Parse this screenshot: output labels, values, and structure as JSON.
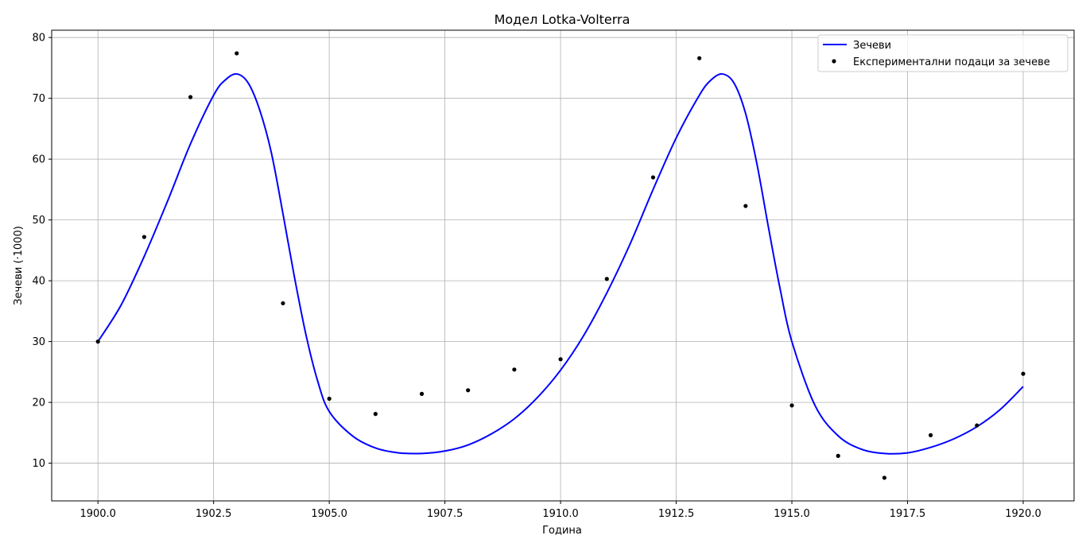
{
  "chart_data": {
    "type": "line",
    "title": "Модел Lotka-Volterra",
    "xlabel": "Година",
    "ylabel": "Зечеви (·1000)",
    "xlim": [
      1899.0,
      1921.1
    ],
    "ylim": [
      3.8,
      81.2
    ],
    "xticks": [
      1900.0,
      1902.5,
      1905.0,
      1907.5,
      1910.0,
      1912.5,
      1915.0,
      1917.5,
      1920.0
    ],
    "xtick_labels": [
      "1900.0",
      "1902.5",
      "1905.0",
      "1907.5",
      "1910.0",
      "1912.5",
      "1915.0",
      "1917.5",
      "1920.0"
    ],
    "yticks": [
      10,
      20,
      30,
      40,
      50,
      60,
      70,
      80
    ],
    "ytick_labels": [
      "10",
      "20",
      "30",
      "40",
      "50",
      "60",
      "70",
      "80"
    ],
    "grid": true,
    "legend_position": "top-right",
    "series": [
      {
        "name": "Зечеви",
        "kind": "line",
        "color": "#0000ff",
        "x": [
          1900.0,
          1900.5,
          1901.0,
          1901.5,
          1902.0,
          1902.5,
          1902.75,
          1903.0,
          1903.25,
          1903.5,
          1903.75,
          1904.0,
          1904.25,
          1904.5,
          1904.75,
          1905.0,
          1905.5,
          1906.0,
          1906.5,
          1907.0,
          1907.5,
          1908.0,
          1908.5,
          1909.0,
          1909.5,
          1910.0,
          1910.5,
          1911.0,
          1911.5,
          1912.0,
          1912.5,
          1913.0,
          1913.25,
          1913.5,
          1913.75,
          1914.0,
          1914.25,
          1914.5,
          1914.75,
          1915.0,
          1915.5,
          1916.0,
          1916.5,
          1917.0,
          1917.5,
          1918.0,
          1918.5,
          1919.0,
          1919.5,
          1920.0
        ],
        "y": [
          30.0,
          36.0,
          44.0,
          53.0,
          62.5,
          70.5,
          73.0,
          74.0,
          72.5,
          68.0,
          61.0,
          51.0,
          40.5,
          31.0,
          23.5,
          18.5,
          14.5,
          12.5,
          11.7,
          11.6,
          12.0,
          13.0,
          14.8,
          17.3,
          20.8,
          25.3,
          31.0,
          38.0,
          46.0,
          55.0,
          63.5,
          70.5,
          73.0,
          74.0,
          72.5,
          67.5,
          59.0,
          48.5,
          38.5,
          30.0,
          19.5,
          14.5,
          12.3,
          11.6,
          11.7,
          12.6,
          14.0,
          16.0,
          18.8,
          22.6
        ]
      },
      {
        "name": "Експериментални подаци за зечеве",
        "kind": "scatter",
        "color": "#000000",
        "x": [
          1900,
          1901,
          1902,
          1903,
          1904,
          1905,
          1906,
          1907,
          1908,
          1909,
          1910,
          1911,
          1912,
          1913,
          1914,
          1915,
          1916,
          1917,
          1918,
          1919,
          1920
        ],
        "y": [
          30.0,
          47.2,
          70.2,
          77.4,
          36.3,
          20.6,
          18.1,
          21.4,
          22.0,
          25.4,
          27.1,
          40.3,
          57.0,
          76.6,
          52.3,
          19.5,
          11.2,
          7.6,
          14.6,
          16.2,
          24.7
        ]
      }
    ]
  }
}
